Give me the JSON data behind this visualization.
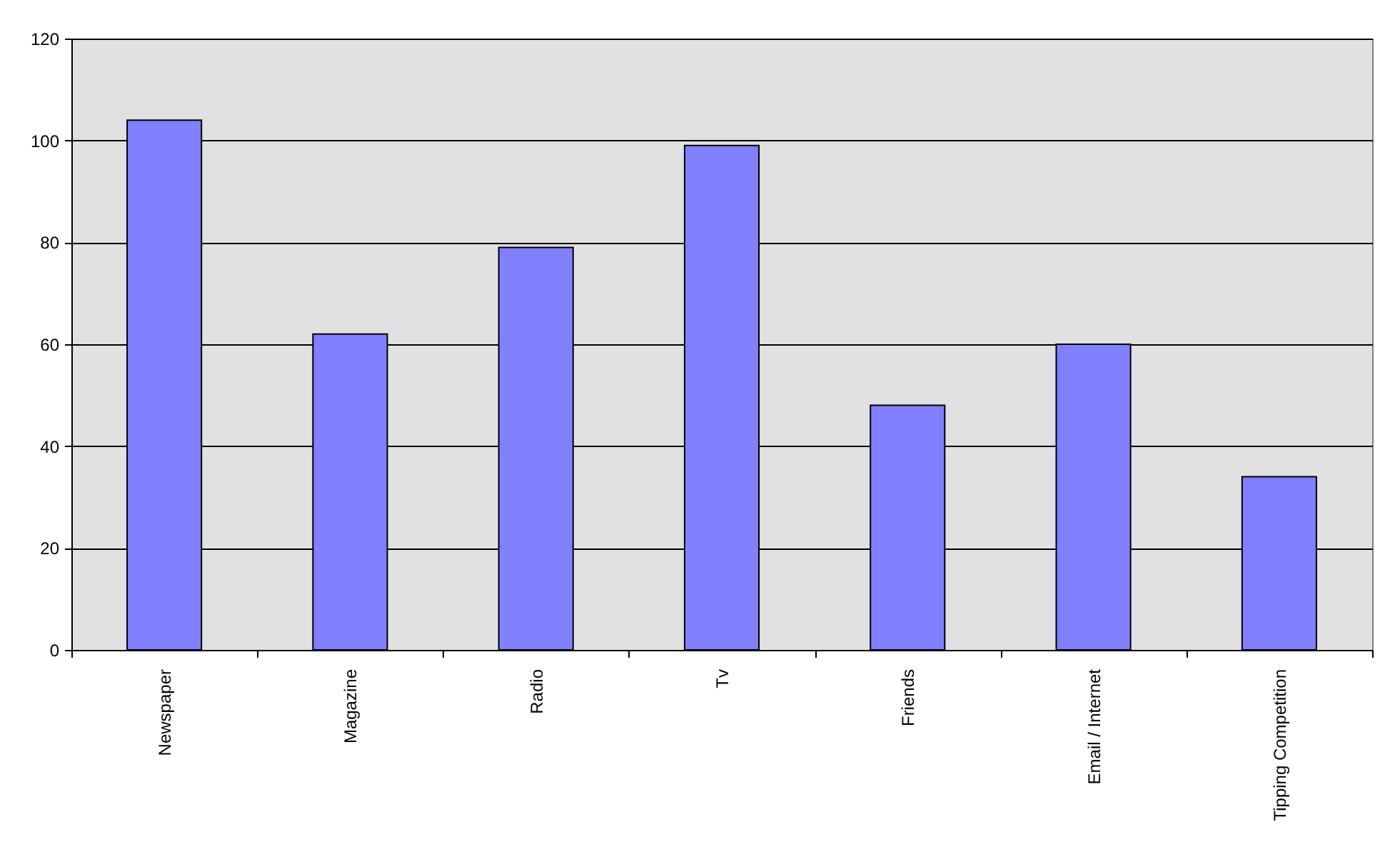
{
  "chart_data": {
    "type": "bar",
    "categories": [
      "Newspaper",
      "Magazine",
      "Radio",
      "Tv",
      "Friends",
      "Email / Internet",
      "Tipping Competition"
    ],
    "values": [
      104,
      62,
      79,
      99,
      48,
      60,
      34
    ],
    "color": "#8080ff",
    "ylim": [
      0,
      120
    ],
    "yticks": [
      0,
      20,
      40,
      60,
      80,
      100,
      120
    ],
    "grid": "y"
  }
}
